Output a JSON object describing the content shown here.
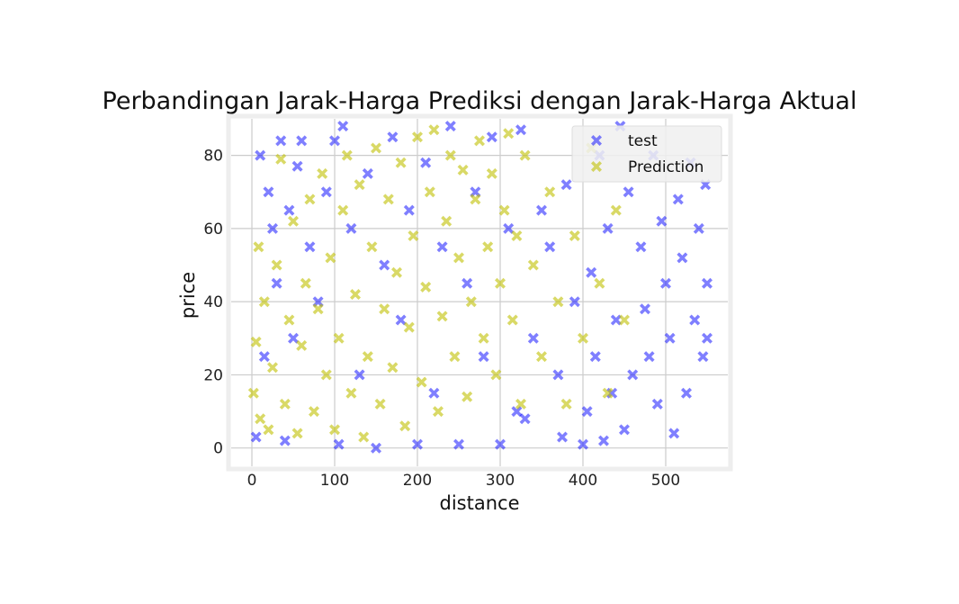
{
  "chart_data": {
    "type": "scatter",
    "title": "Perbandingan Jarak-Harga Prediksi dengan Jarak-Harga Aktual",
    "xlabel": "distance",
    "ylabel": "price",
    "xlim": [
      -25,
      575
    ],
    "ylim": [
      -5,
      90
    ],
    "xticks": [
      0,
      100,
      200,
      300,
      400,
      500
    ],
    "yticks": [
      0,
      20,
      40,
      60,
      80
    ],
    "grid": true,
    "legend_position": "top-right",
    "series": [
      {
        "name": "test",
        "color": "#0000ff",
        "marker": "X",
        "alpha": 0.5,
        "points": [
          [
            5,
            3
          ],
          [
            10,
            80
          ],
          [
            15,
            25
          ],
          [
            20,
            70
          ],
          [
            25,
            60
          ],
          [
            30,
            45
          ],
          [
            35,
            84
          ],
          [
            40,
            2
          ],
          [
            45,
            65
          ],
          [
            50,
            30
          ],
          [
            55,
            77
          ],
          [
            60,
            84
          ],
          [
            70,
            55
          ],
          [
            80,
            40
          ],
          [
            90,
            70
          ],
          [
            100,
            84
          ],
          [
            105,
            1
          ],
          [
            110,
            88
          ],
          [
            120,
            60
          ],
          [
            130,
            20
          ],
          [
            140,
            75
          ],
          [
            150,
            0
          ],
          [
            160,
            50
          ],
          [
            170,
            85
          ],
          [
            180,
            35
          ],
          [
            190,
            65
          ],
          [
            200,
            1
          ],
          [
            210,
            78
          ],
          [
            220,
            15
          ],
          [
            230,
            55
          ],
          [
            240,
            88
          ],
          [
            250,
            1
          ],
          [
            260,
            45
          ],
          [
            270,
            70
          ],
          [
            280,
            25
          ],
          [
            290,
            85
          ],
          [
            300,
            1
          ],
          [
            310,
            60
          ],
          [
            320,
            10
          ],
          [
            325,
            87
          ],
          [
            330,
            8
          ],
          [
            340,
            30
          ],
          [
            350,
            65
          ],
          [
            360,
            55
          ],
          [
            370,
            20
          ],
          [
            375,
            3
          ],
          [
            380,
            72
          ],
          [
            390,
            40
          ],
          [
            400,
            1
          ],
          [
            405,
            10
          ],
          [
            410,
            48
          ],
          [
            415,
            25
          ],
          [
            420,
            80
          ],
          [
            425,
            2
          ],
          [
            430,
            60
          ],
          [
            435,
            15
          ],
          [
            440,
            35
          ],
          [
            445,
            88
          ],
          [
            450,
            5
          ],
          [
            455,
            70
          ],
          [
            460,
            20
          ],
          [
            470,
            55
          ],
          [
            475,
            38
          ],
          [
            480,
            25
          ],
          [
            485,
            80
          ],
          [
            490,
            12
          ],
          [
            495,
            62
          ],
          [
            500,
            45
          ],
          [
            505,
            30
          ],
          [
            510,
            4
          ],
          [
            515,
            68
          ],
          [
            520,
            52
          ],
          [
            525,
            15
          ],
          [
            530,
            78
          ],
          [
            535,
            35
          ],
          [
            540,
            60
          ],
          [
            545,
            25
          ],
          [
            548,
            72
          ],
          [
            550,
            45
          ],
          [
            550,
            30
          ]
        ]
      },
      {
        "name": "Prediction",
        "color": "#bfbf00",
        "marker": "X",
        "alpha": 0.6,
        "points": [
          [
            2,
            15
          ],
          [
            5,
            29
          ],
          [
            8,
            55
          ],
          [
            10,
            8
          ],
          [
            15,
            40
          ],
          [
            20,
            5
          ],
          [
            25,
            22
          ],
          [
            30,
            50
          ],
          [
            35,
            79
          ],
          [
            40,
            12
          ],
          [
            45,
            35
          ],
          [
            50,
            62
          ],
          [
            55,
            4
          ],
          [
            60,
            28
          ],
          [
            65,
            45
          ],
          [
            70,
            68
          ],
          [
            75,
            10
          ],
          [
            80,
            38
          ],
          [
            85,
            75
          ],
          [
            90,
            20
          ],
          [
            95,
            52
          ],
          [
            100,
            5
          ],
          [
            105,
            30
          ],
          [
            110,
            65
          ],
          [
            115,
            80
          ],
          [
            120,
            15
          ],
          [
            125,
            42
          ],
          [
            130,
            72
          ],
          [
            135,
            3
          ],
          [
            140,
            25
          ],
          [
            145,
            55
          ],
          [
            150,
            82
          ],
          [
            155,
            12
          ],
          [
            160,
            38
          ],
          [
            165,
            68
          ],
          [
            170,
            22
          ],
          [
            175,
            48
          ],
          [
            180,
            78
          ],
          [
            185,
            6
          ],
          [
            190,
            33
          ],
          [
            195,
            58
          ],
          [
            200,
            85
          ],
          [
            205,
            18
          ],
          [
            210,
            44
          ],
          [
            215,
            70
          ],
          [
            220,
            87
          ],
          [
            225,
            10
          ],
          [
            230,
            36
          ],
          [
            235,
            62
          ],
          [
            240,
            80
          ],
          [
            245,
            25
          ],
          [
            250,
            52
          ],
          [
            255,
            76
          ],
          [
            260,
            14
          ],
          [
            265,
            40
          ],
          [
            270,
            68
          ],
          [
            275,
            84
          ],
          [
            280,
            30
          ],
          [
            285,
            55
          ],
          [
            290,
            75
          ],
          [
            295,
            20
          ],
          [
            300,
            45
          ],
          [
            305,
            65
          ],
          [
            310,
            86
          ],
          [
            315,
            35
          ],
          [
            320,
            58
          ],
          [
            325,
            12
          ],
          [
            330,
            80
          ],
          [
            340,
            50
          ],
          [
            350,
            25
          ],
          [
            360,
            70
          ],
          [
            370,
            40
          ],
          [
            380,
            12
          ],
          [
            390,
            58
          ],
          [
            400,
            30
          ],
          [
            410,
            82
          ],
          [
            420,
            45
          ],
          [
            430,
            15
          ],
          [
            440,
            65
          ],
          [
            450,
            35
          ]
        ]
      }
    ]
  }
}
